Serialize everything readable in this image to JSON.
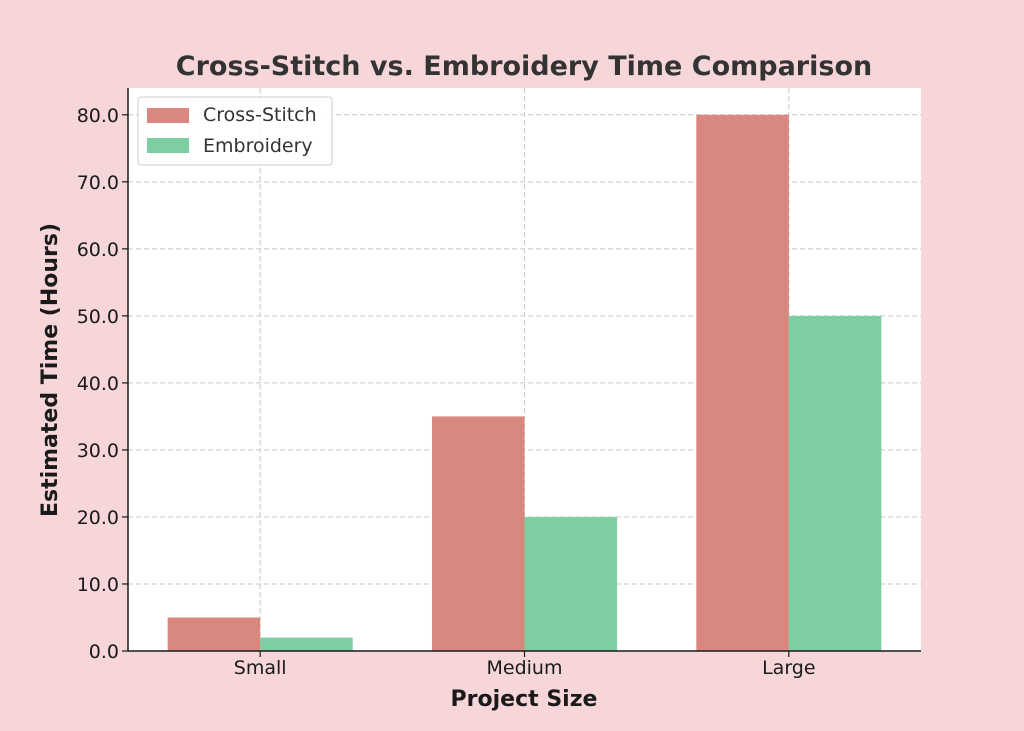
{
  "chart_data": {
    "type": "bar",
    "title": "Cross-Stitch vs. Embroidery Time Comparison",
    "xlabel": "Project Size",
    "ylabel": "Estimated Time (Hours)",
    "categories": [
      "Small",
      "Medium",
      "Large"
    ],
    "series": [
      {
        "name": "Cross-Stitch",
        "values": [
          5,
          35,
          80
        ],
        "color": "#d98880"
      },
      {
        "name": "Embroidery",
        "values": [
          2,
          20,
          50
        ],
        "color": "#7dcea0"
      }
    ],
    "ylim": [
      0,
      84
    ],
    "yticks": [
      0,
      10,
      20,
      30,
      40,
      50,
      60,
      70,
      80
    ],
    "ytick_labels": [
      "0.0",
      "10.0",
      "20.0",
      "30.0",
      "40.0",
      "50.0",
      "60.0",
      "70.0",
      "80.0"
    ],
    "grid": true,
    "legend_position": "top-left",
    "colors": {
      "background": "#f7d6da",
      "plot_background": "#ffffff",
      "grid": "#c8c8c8",
      "axis": "#1a1a1a"
    }
  }
}
